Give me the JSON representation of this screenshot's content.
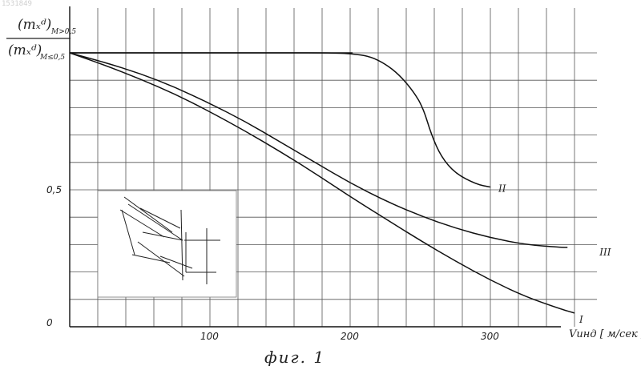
{
  "document_id": "1531849",
  "caption": "фиг. 1",
  "chart_data": {
    "type": "line",
    "ylabel": {
      "numerator": "(mₓᵈ)",
      "numerator_sub": "M>0,5",
      "denominator": "(mₓᵈ)",
      "denominator_sub": "M≤0,5"
    },
    "xlabel": "Vинд [ м/сек ]",
    "xlim": [
      0,
      380
    ],
    "ylim": [
      0,
      1.0
    ],
    "x_ticks": [
      100,
      200,
      300
    ],
    "x_tick_labels": [
      "100",
      "200",
      "300"
    ],
    "y_ticks": [
      0,
      0.5
    ],
    "y_tick_labels": [
      "0",
      "0,5"
    ],
    "grid": true,
    "series": [
      {
        "name": "I",
        "x": [
          0,
          25,
          50,
          75,
          100,
          125,
          150,
          175,
          200,
          225,
          250,
          275,
          300,
          325,
          350,
          360
        ],
        "y": [
          1.0,
          0.955,
          0.905,
          0.85,
          0.785,
          0.715,
          0.64,
          0.56,
          0.475,
          0.395,
          0.315,
          0.24,
          0.17,
          0.11,
          0.065,
          0.05
        ]
      },
      {
        "name": "II",
        "x": [
          0,
          100,
          150,
          190,
          205,
          215,
          225,
          235,
          245,
          252,
          258,
          265,
          275,
          290,
          300
        ],
        "y": [
          1.0,
          1.0,
          1.0,
          1.0,
          0.995,
          0.985,
          0.96,
          0.92,
          0.86,
          0.8,
          0.7,
          0.62,
          0.56,
          0.52,
          0.51
        ]
      },
      {
        "name": "III",
        "x": [
          0,
          25,
          50,
          75,
          100,
          125,
          150,
          175,
          200,
          225,
          250,
          275,
          300,
          325,
          350,
          355
        ],
        "y": [
          1.0,
          0.965,
          0.925,
          0.875,
          0.815,
          0.75,
          0.675,
          0.6,
          0.525,
          0.46,
          0.405,
          0.36,
          0.325,
          0.3,
          0.29,
          0.29
        ]
      }
    ]
  }
}
